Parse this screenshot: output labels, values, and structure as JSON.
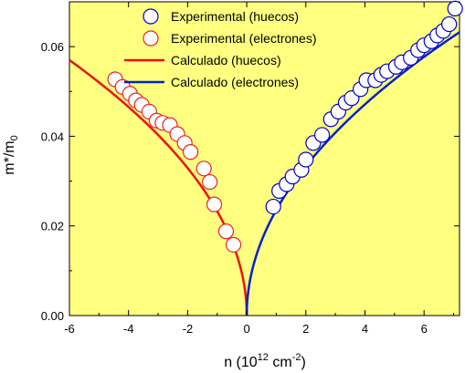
{
  "chart_data": {
    "type": "scatter",
    "background_color": "#ffff80",
    "xlim": [
      -6,
      7.2
    ],
    "ylim": [
      0,
      0.07
    ],
    "xticks": [
      -6,
      -4,
      -2,
      0,
      2,
      4,
      6
    ],
    "yticks": [
      0.0,
      0.02,
      0.04,
      0.06
    ],
    "xtick_labels": [
      "-6",
      "-4",
      "-2",
      "0",
      "2",
      "4",
      "6"
    ],
    "ytick_labels": [
      "0.00",
      "0.02",
      "0.04",
      "0.06"
    ],
    "xlabel": {
      "main": "n (10",
      "sup1": "12",
      "mid": " cm",
      "sup2": "-2",
      "end": ")"
    },
    "ylabel": {
      "main": "m*/m",
      "sub": "0"
    },
    "legend_position": "top-right",
    "series": [
      {
        "name": "Experimental (huecos)",
        "kind": "marker",
        "color": "#0000cc",
        "points": [
          [
            0.9,
            0.0243
          ],
          [
            1.1,
            0.0278
          ],
          [
            1.35,
            0.0293
          ],
          [
            1.55,
            0.031
          ],
          [
            1.85,
            0.0325
          ],
          [
            2.0,
            0.0348
          ],
          [
            2.25,
            0.0385
          ],
          [
            2.55,
            0.0403
          ],
          [
            2.85,
            0.0438
          ],
          [
            3.1,
            0.0455
          ],
          [
            3.35,
            0.0475
          ],
          [
            3.55,
            0.0485
          ],
          [
            3.85,
            0.0505
          ],
          [
            4.05,
            0.0525
          ],
          [
            4.35,
            0.0525
          ],
          [
            4.55,
            0.0537
          ],
          [
            4.75,
            0.0545
          ],
          [
            5.05,
            0.0555
          ],
          [
            5.25,
            0.0565
          ],
          [
            5.55,
            0.0575
          ],
          [
            5.8,
            0.0592
          ],
          [
            6.0,
            0.0603
          ],
          [
            6.25,
            0.0612
          ],
          [
            6.45,
            0.0625
          ],
          [
            6.65,
            0.0635
          ],
          [
            6.85,
            0.065
          ],
          [
            7.05,
            0.0685
          ]
        ]
      },
      {
        "name": "Experimental (electrones)",
        "kind": "marker",
        "color": "#ee2222",
        "points": [
          [
            -4.45,
            0.0527
          ],
          [
            -4.2,
            0.051
          ],
          [
            -3.95,
            0.0495
          ],
          [
            -3.75,
            0.048
          ],
          [
            -3.55,
            0.047
          ],
          [
            -3.3,
            0.0455
          ],
          [
            -3.05,
            0.0435
          ],
          [
            -2.85,
            0.043
          ],
          [
            -2.6,
            0.0425
          ],
          [
            -2.35,
            0.0405
          ],
          [
            -2.1,
            0.0385
          ],
          [
            -1.9,
            0.0365
          ],
          [
            -1.45,
            0.0328
          ],
          [
            -1.25,
            0.0298
          ],
          [
            -1.1,
            0.0248
          ],
          [
            -0.7,
            0.0188
          ],
          [
            -0.45,
            0.0158
          ]
        ]
      },
      {
        "name": "Calculado (huecos)",
        "kind": "line",
        "color": "#ee1111",
        "coef": 0.02327,
        "side": "negative"
      },
      {
        "name": "Calculado (electrones)",
        "kind": "line",
        "color": "#0022cc",
        "coef": 0.02356,
        "side": "positive"
      }
    ]
  }
}
